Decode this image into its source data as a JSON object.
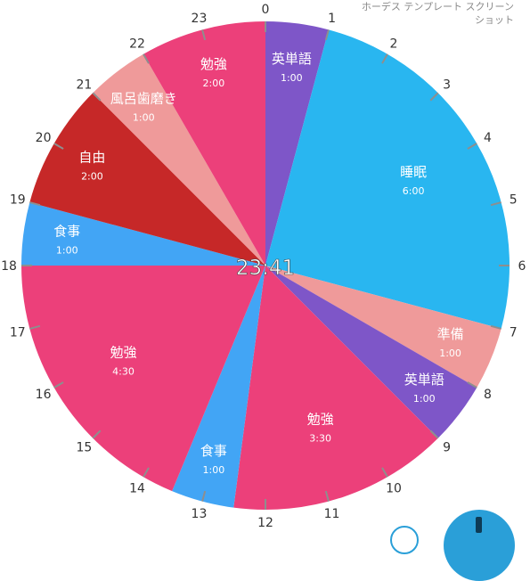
{
  "header": {
    "line1": "ホーデス テンプレート スクリーン",
    "line2": "ショット"
  },
  "clock": {
    "current_time": "23:41"
  },
  "colors": {
    "purple": "#7e56c8",
    "blue": "#29b6f0",
    "salmon": "#ef9a9a",
    "pink": "#ec407a",
    "red": "#c62828",
    "lightblue": "#42a5f5"
  },
  "chart_data": {
    "type": "pie",
    "start_hour": 0,
    "segments": [
      {
        "label": "英単語",
        "duration": "1:00",
        "hours": 1,
        "color": "#7e56c8"
      },
      {
        "label": "睡眠",
        "duration": "6:00",
        "hours": 6,
        "color": "#29b6f0"
      },
      {
        "label": "準備",
        "duration": "1:00",
        "hours": 1,
        "color": "#ef9a9a"
      },
      {
        "label": "英単語",
        "duration": "1:00",
        "hours": 1,
        "color": "#7e56c8"
      },
      {
        "label": "勉強",
        "duration": "3:30",
        "hours": 3.5,
        "color": "#ec407a"
      },
      {
        "label": "食事",
        "duration": "1:00",
        "hours": 1,
        "color": "#42a5f5"
      },
      {
        "label": "勉強",
        "duration": "4:30",
        "hours": 4.5,
        "color": "#ec407a"
      },
      {
        "label": "食事",
        "duration": "1:00",
        "hours": 1,
        "color": "#42a5f5"
      },
      {
        "label": "自由",
        "duration": "2:00",
        "hours": 2,
        "color": "#c62828"
      },
      {
        "label": "風呂歯磨き",
        "duration": "1:00",
        "hours": 1,
        "color": "#ef9a9a"
      },
      {
        "label": "勉強",
        "duration": "2:00",
        "hours": 2,
        "color": "#ec407a"
      }
    ],
    "hour_labels": [
      "0",
      "1",
      "2",
      "3",
      "4",
      "5",
      "6",
      "7",
      "8",
      "9",
      "10",
      "11",
      "12",
      "13",
      "14",
      "15",
      "16",
      "17",
      "18",
      "19",
      "20",
      "21",
      "22",
      "23"
    ]
  }
}
